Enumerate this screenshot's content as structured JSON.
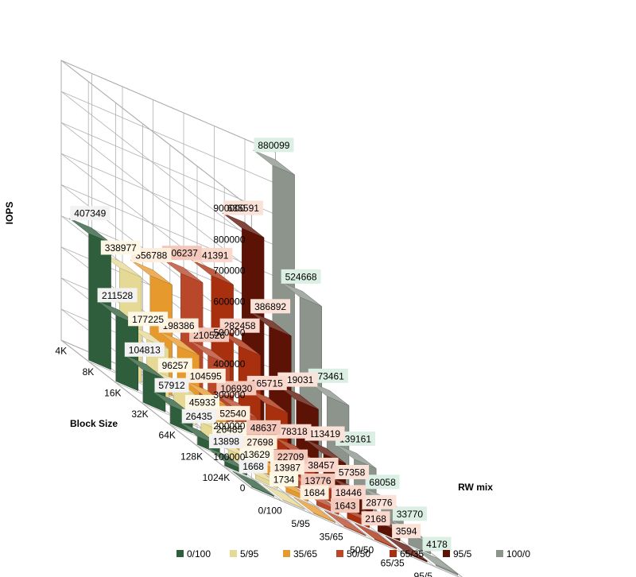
{
  "chart_data": {
    "type": "bar3d",
    "ylabel": "IOPS",
    "xlabel": "RW mix",
    "zlabel": "Block Size",
    "ylim": [
      0,
      900000
    ],
    "yticks": [
      "0",
      "100000",
      "200000",
      "300000",
      "400000",
      "500000",
      "600000",
      "700000",
      "800000",
      "900000"
    ],
    "categories": [
      "4K",
      "8K",
      "16K",
      "32K",
      "64K",
      "128K",
      "1024K"
    ],
    "legend_position": "bottom",
    "series": [
      {
        "name": "0/100",
        "color": "#2e5e3c",
        "label_bg": "#f2f2f2",
        "values": [
          407349,
          211528,
          104813,
          57912,
          26435,
          13898,
          1668
        ],
        "labels": [
          "407349",
          "211528",
          "104813",
          "57912",
          "26435",
          "13898",
          "1668"
        ]
      },
      {
        "name": "5/95",
        "color": "#e6d995",
        "label_bg": "#fdf8e6",
        "values": [
          338977,
          177225,
          96257,
          45933,
          26485,
          13629,
          1734
        ],
        "labels": [
          "338977",
          "177225",
          "96257",
          "45933",
          "26485",
          "13629",
          "1734"
        ]
      },
      {
        "name": "35/65",
        "color": "#e69a2e",
        "label_bg": "#fdeedd",
        "values": [
          356788,
          198386,
          104595,
          52540,
          27698,
          13987,
          1684
        ],
        "labels": [
          "356788",
          "198386",
          "104595",
          "52540",
          "27698",
          "13987",
          "1684"
        ]
      },
      {
        "name": "50/50",
        "color": "#b9472a",
        "label_bg": "#f4c7bb",
        "values": [
          406237,
          210526,
          106930,
          48637,
          22709,
          13776,
          1643
        ],
        "labels": [
          "406237",
          "210526",
          "106930",
          "48637",
          "22709",
          "13776",
          "1643"
        ]
      },
      {
        "name": "65/35",
        "color": "#a8300f",
        "label_bg": "#fbd8cd",
        "values": [
          441391,
          282458,
          165715,
          78318,
          38457,
          18446,
          2168
        ],
        "labels": [
          "441391",
          "282458",
          "165715",
          "78318",
          "38457",
          "18446",
          "2168"
        ]
      },
      {
        "name": "95/5",
        "color": "#5c1306",
        "label_bg": "#fbe2d8",
        "values": [
          635591,
          386892,
          219031,
          113419,
          57358,
          28776,
          3594
        ],
        "labels": [
          "635591",
          "386892",
          "219031",
          "113419",
          "57358",
          "28776",
          "3594"
        ]
      },
      {
        "name": "100/0",
        "color": "#8c948c",
        "label_bg": "#dcefe4",
        "values": [
          880099,
          524668,
          273461,
          139161,
          68058,
          33770,
          4178
        ],
        "labels": [
          "880099",
          "524668",
          "273461",
          "139161",
          "68058",
          "33770",
          "4178"
        ]
      }
    ]
  }
}
